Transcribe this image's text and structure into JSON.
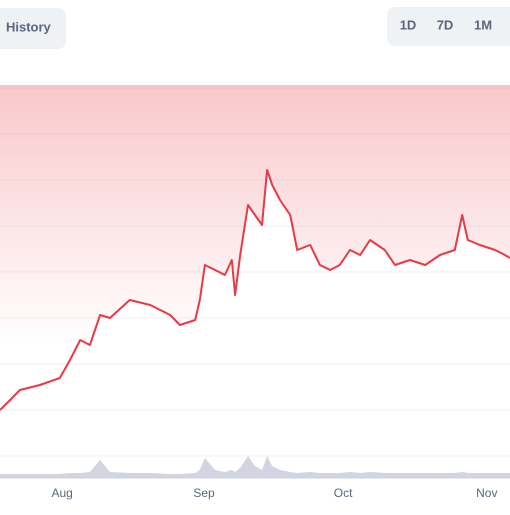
{
  "chart_data": {
    "type": "line",
    "buttons": [
      "History",
      "1D",
      "7D",
      "1M"
    ],
    "x": [
      0,
      2.2,
      4.3,
      8.6,
      12.9,
      15.1,
      17.3,
      19.4,
      21.6,
      23.7,
      28,
      32.4,
      36.7,
      38.8,
      42.1,
      43.1,
      44.2,
      46.4,
      48.5,
      50,
      50.7,
      51.8,
      53.5,
      55,
      56.5,
      57.6,
      58.7,
      60.4,
      62.6,
      64.1,
      66.9,
      69,
      71.2,
      73.3,
      75.5,
      77.7,
      79.8,
      83,
      85.2,
      88.4,
      91.7,
      94.9,
      98.1,
      99.7,
      100.9,
      103.5,
      106.8,
      108.9,
      110
    ],
    "series": [
      {
        "color": "#ea3943",
        "values": [
          70,
          80,
          90,
          95,
          102,
          120,
          140,
          135,
          165,
          162,
          180,
          175,
          165,
          155,
          160,
          180,
          215,
          210,
          205,
          220,
          185,
          225,
          275,
          265,
          255,
          310,
          295,
          280,
          265,
          230,
          235,
          215,
          210,
          215,
          230,
          225,
          240,
          230,
          215,
          220,
          215,
          225,
          230,
          265,
          240,
          235,
          230,
          225,
          222
        ]
      },
      {
        "color": "#c7cbd9",
        "values": [
          4,
          4,
          4,
          4,
          4,
          5,
          5,
          6,
          18,
          6,
          5,
          5,
          4,
          4,
          5,
          8,
          20,
          8,
          6,
          8,
          6,
          10,
          22,
          12,
          8,
          22,
          12,
          8,
          6,
          5,
          6,
          5,
          5,
          5,
          6,
          5,
          6,
          5,
          5,
          5,
          5,
          5,
          5,
          6,
          5,
          5,
          5,
          5,
          5
        ]
      }
    ],
    "xlim": [
      0,
      110
    ],
    "ylim": [
      0,
      395
    ],
    "volume_ylim": [
      0,
      395
    ],
    "xticks": [
      {
        "value": 13.4,
        "label": "Aug"
      },
      {
        "value": 44,
        "label": "Sep"
      },
      {
        "value": 74,
        "label": "Oct"
      },
      {
        "value": 105,
        "label": "Nov"
      }
    ],
    "grid": true
  }
}
